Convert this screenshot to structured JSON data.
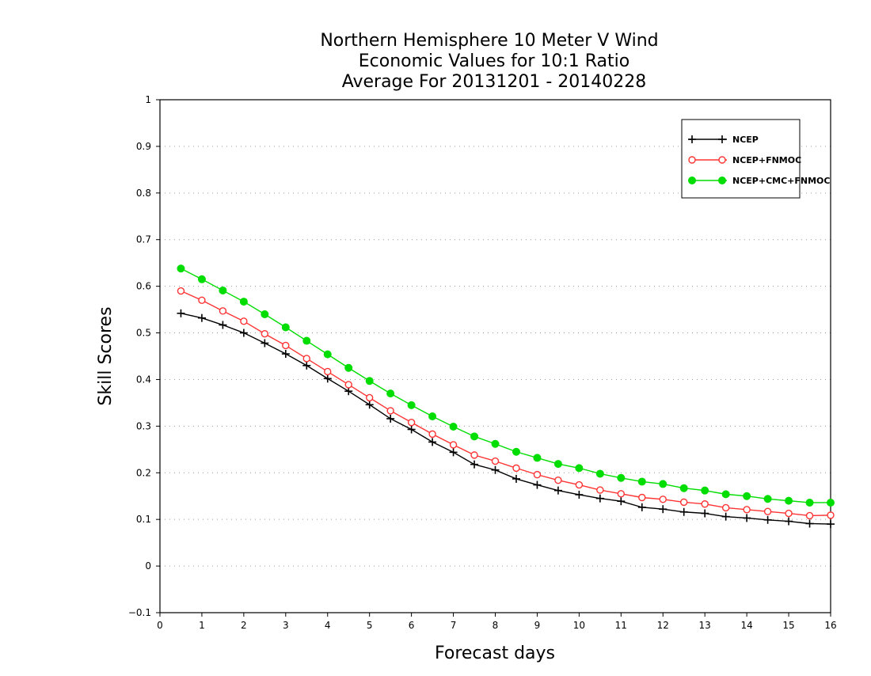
{
  "chart_data": {
    "type": "line",
    "title_lines": [
      "Northern Hemisphere 10 Meter V Wind",
      "Economic Values for 10:1 Ratio",
      "Average For 20131201 - 20140228"
    ],
    "xlabel": "Forecast days",
    "ylabel": "Skill Scores",
    "xlim": [
      0,
      16
    ],
    "ylim": [
      -0.1,
      1
    ],
    "x_ticks": [
      "0",
      "1",
      "2",
      "3",
      "4",
      "5",
      "6",
      "7",
      "8",
      "9",
      "10",
      "11",
      "12",
      "13",
      "14",
      "15",
      "16"
    ],
    "y_ticks": [
      "1",
      "0.9",
      "0.8",
      "0.7",
      "0.6",
      "0.5",
      "0.4",
      "0.3",
      "0.2",
      "0.1",
      "0",
      "−0.1"
    ],
    "grid": "horizontal dotted",
    "legend_position": "top-right",
    "x": [
      0.5,
      1,
      1.5,
      2,
      2.5,
      3,
      3.5,
      4,
      4.5,
      5,
      5.5,
      6,
      6.5,
      7,
      7.5,
      8,
      8.5,
      9,
      9.5,
      10,
      10.5,
      11,
      11.5,
      12,
      12.5,
      13,
      13.5,
      14,
      14.5,
      15,
      15.5,
      16
    ],
    "series": [
      {
        "name": "NCEP",
        "color": "#000000",
        "marker": "plus",
        "values": [
          0.542,
          0.532,
          0.517,
          0.5,
          0.478,
          0.455,
          0.43,
          0.402,
          0.375,
          0.346,
          0.316,
          0.293,
          0.266,
          0.244,
          0.218,
          0.206,
          0.187,
          0.174,
          0.162,
          0.153,
          0.145,
          0.139,
          0.126,
          0.122,
          0.116,
          0.113,
          0.106,
          0.103,
          0.099,
          0.096,
          0.091,
          0.09
        ]
      },
      {
        "name": "NCEP+FNMOC",
        "color": "#ff3333",
        "marker": "open-circle",
        "values": [
          0.59,
          0.57,
          0.547,
          0.525,
          0.498,
          0.473,
          0.445,
          0.417,
          0.389,
          0.361,
          0.333,
          0.308,
          0.283,
          0.26,
          0.238,
          0.225,
          0.21,
          0.196,
          0.184,
          0.174,
          0.163,
          0.155,
          0.147,
          0.143,
          0.137,
          0.133,
          0.125,
          0.121,
          0.117,
          0.113,
          0.108,
          0.109
        ]
      },
      {
        "name": "NCEP+CMC+FNMOC",
        "color": "#00dd00",
        "marker": "filled-circle",
        "values": [
          0.638,
          0.615,
          0.591,
          0.567,
          0.54,
          0.512,
          0.483,
          0.454,
          0.425,
          0.397,
          0.37,
          0.345,
          0.321,
          0.299,
          0.278,
          0.262,
          0.245,
          0.232,
          0.219,
          0.21,
          0.198,
          0.189,
          0.181,
          0.176,
          0.167,
          0.162,
          0.154,
          0.15,
          0.144,
          0.14,
          0.136,
          0.136
        ]
      }
    ]
  }
}
